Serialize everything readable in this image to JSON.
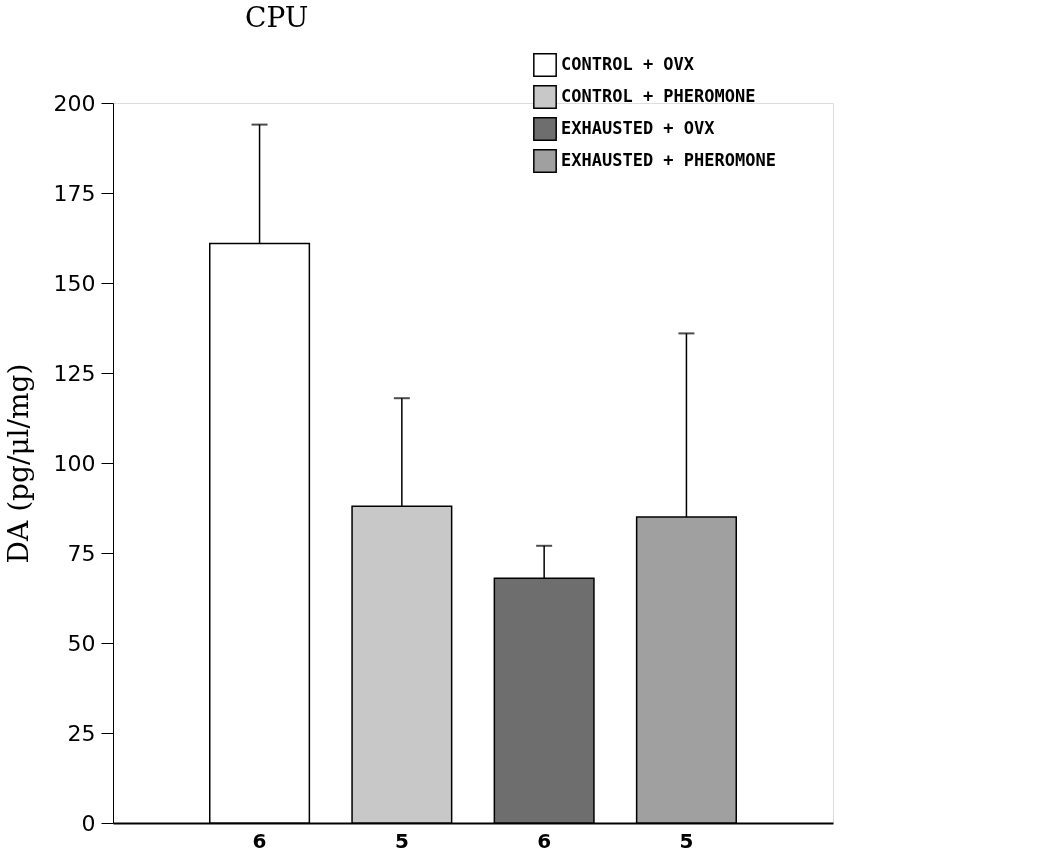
{
  "chart_data": {
    "type": "bar",
    "title": "CPU",
    "ylabel": "DA (pg/μl/mg)",
    "categories": [
      "6",
      "5",
      "6",
      "5"
    ],
    "series": [
      {
        "name": "CONTROL + OVX",
        "color": "#ffffff",
        "values": [
          161,
          null,
          null,
          null
        ],
        "errors": [
          [
            161,
            194
          ],
          null,
          null,
          null
        ]
      },
      {
        "name": "CONTROL + PHEROMONE",
        "color": "#c8c8c8",
        "values": [
          null,
          88,
          null,
          null
        ],
        "errors": [
          null,
          [
            88,
            118
          ],
          null,
          null
        ]
      },
      {
        "name": "EXHAUSTED + OVX",
        "color": "#6e6e6e",
        "values": [
          null,
          null,
          68,
          null
        ],
        "errors": [
          null,
          null,
          [
            68,
            77
          ],
          null
        ]
      },
      {
        "name": "EXHAUSTED + PHEROMONE",
        "color": "#a0a0a0",
        "values": [
          null,
          null,
          null,
          85
        ],
        "errors": [
          null,
          null,
          null,
          [
            85,
            136
          ]
        ]
      }
    ],
    "ylim": [
      0,
      200
    ],
    "yticks": [
      0,
      25,
      50,
      75,
      100,
      125,
      150,
      175,
      200
    ],
    "grid": false,
    "legend": "top right"
  }
}
